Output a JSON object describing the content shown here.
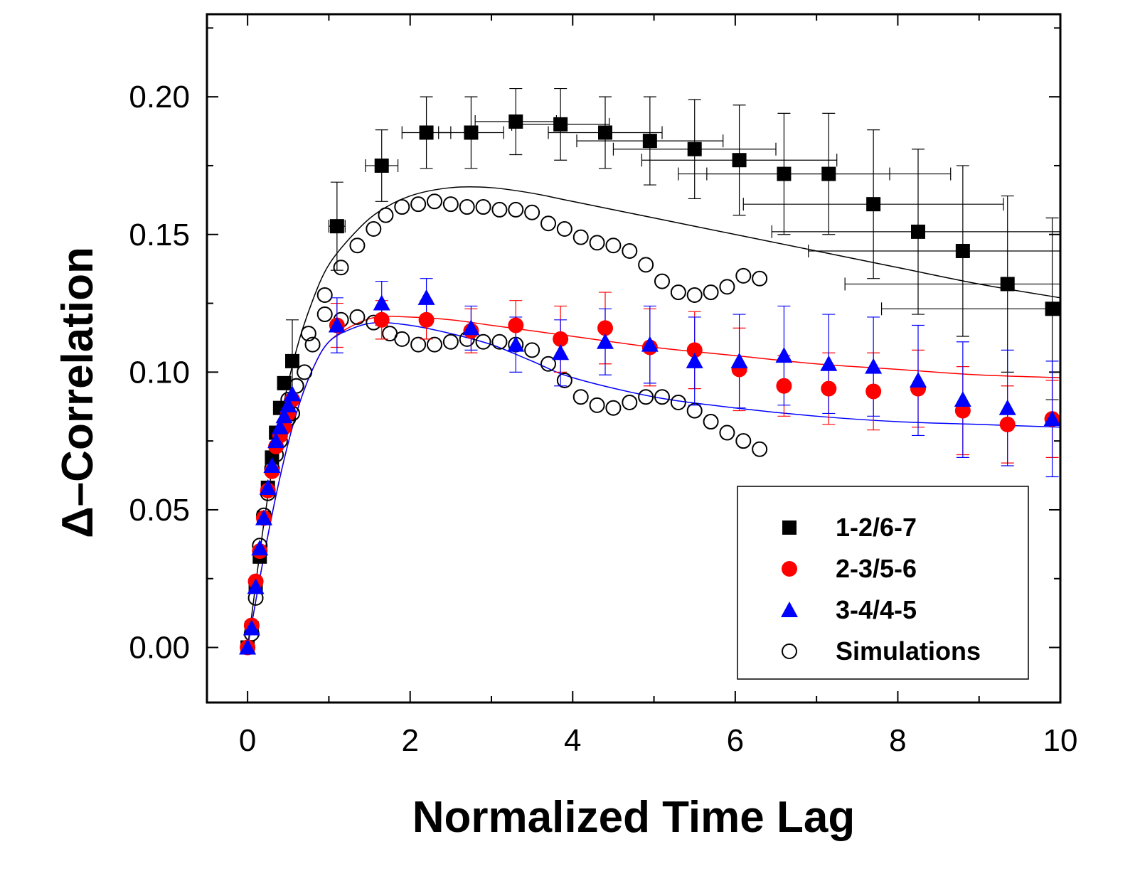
{
  "chart_data": {
    "type": "scatter",
    "title": "",
    "xlabel": "Normalized Time Lag",
    "ylabel": "Δ–Correlation",
    "xlim": [
      -0.5,
      10
    ],
    "ylim": [
      -0.02,
      0.23
    ],
    "xticks": [
      0,
      2,
      4,
      6,
      8,
      10
    ],
    "xtick_labels": [
      "0",
      "2",
      "4",
      "6",
      "8",
      "10"
    ],
    "yticks": [
      0.0,
      0.05,
      0.1,
      0.15,
      0.2
    ],
    "ytick_labels": [
      "0.00",
      "0.05",
      "0.10",
      "0.15",
      "0.20"
    ],
    "legend_position": "bottom-right",
    "series": [
      {
        "name": "1-2/6-7",
        "marker": "square",
        "color": "#000000",
        "x": [
          0.0,
          0.05,
          0.1,
          0.15,
          0.2,
          0.25,
          0.3,
          0.35,
          0.4,
          0.45,
          0.5,
          0.55,
          1.1,
          1.65,
          2.2,
          2.75,
          3.3,
          3.85,
          4.4,
          4.95,
          5.5,
          6.05,
          6.6,
          7.15,
          7.7,
          8.25,
          8.8,
          9.35,
          9.9
        ],
        "y": [
          0.0,
          0.007,
          0.022,
          0.033,
          0.047,
          0.058,
          0.069,
          0.078,
          0.087,
          0.096,
          0.085,
          0.104,
          0.153,
          0.175,
          0.187,
          0.187,
          0.191,
          0.19,
          0.187,
          0.184,
          0.181,
          0.177,
          0.172,
          0.172,
          0.161,
          0.151,
          0.144,
          0.132,
          0.123
        ],
        "yerr": [
          0,
          0,
          0,
          0,
          0,
          0,
          0,
          0,
          0,
          0,
          0,
          0.015,
          0.016,
          0.013,
          0.013,
          0.013,
          0.012,
          0.013,
          0.013,
          0.016,
          0.018,
          0.02,
          0.022,
          0.022,
          0.027,
          0.03,
          0.031,
          0.032,
          0.033
        ],
        "xerr": [
          0,
          0,
          0,
          0,
          0,
          0,
          0,
          0,
          0,
          0,
          0,
          0,
          0.1,
          0.2,
          0.3,
          0.4,
          0.5,
          0.6,
          0.7,
          0.9,
          1.0,
          1.2,
          1.3,
          1.5,
          1.6,
          1.8,
          1.9,
          2.0,
          2.1
        ],
        "fit": [
          [
            0.0,
            0.0
          ],
          [
            0.2,
            0.045
          ],
          [
            0.4,
            0.082
          ],
          [
            0.6,
            0.108
          ],
          [
            0.8,
            0.126
          ],
          [
            1.0,
            0.139
          ],
          [
            1.3,
            0.15
          ],
          [
            1.6,
            0.158
          ],
          [
            2.0,
            0.164
          ],
          [
            2.5,
            0.167
          ],
          [
            3.0,
            0.167
          ],
          [
            3.5,
            0.165
          ],
          [
            4.0,
            0.162
          ],
          [
            5.0,
            0.156
          ],
          [
            6.0,
            0.15
          ],
          [
            7.0,
            0.144
          ],
          [
            8.0,
            0.138
          ],
          [
            9.0,
            0.132
          ],
          [
            10.0,
            0.127
          ]
        ]
      },
      {
        "name": "2-3/5-6",
        "marker": "circle",
        "color": "#ff0000",
        "x": [
          0.0,
          0.05,
          0.1,
          0.15,
          0.2,
          0.25,
          0.3,
          0.35,
          0.4,
          0.45,
          0.5,
          0.55,
          1.1,
          1.65,
          2.2,
          2.75,
          3.3,
          3.85,
          4.4,
          4.95,
          5.5,
          6.05,
          6.6,
          7.15,
          7.7,
          8.25,
          8.8,
          9.35,
          9.9
        ],
        "y": [
          0.0,
          0.008,
          0.024,
          0.035,
          0.047,
          0.057,
          0.064,
          0.073,
          0.077,
          0.08,
          0.085,
          0.09,
          0.117,
          0.119,
          0.119,
          0.115,
          0.117,
          0.112,
          0.116,
          0.109,
          0.108,
          0.101,
          0.095,
          0.094,
          0.093,
          0.094,
          0.086,
          0.081,
          0.083
        ],
        "yerr": [
          0,
          0,
          0,
          0,
          0,
          0,
          0,
          0,
          0,
          0,
          0,
          0,
          0.008,
          0.007,
          0.007,
          0.008,
          0.009,
          0.012,
          0.013,
          0.014,
          0.014,
          0.015,
          0.011,
          0.013,
          0.014,
          0.014,
          0.016,
          0.014,
          0.014
        ],
        "fit": [
          [
            0.0,
            0.0
          ],
          [
            0.2,
            0.033
          ],
          [
            0.4,
            0.062
          ],
          [
            0.6,
            0.085
          ],
          [
            0.8,
            0.101
          ],
          [
            1.0,
            0.111
          ],
          [
            1.3,
            0.117
          ],
          [
            1.6,
            0.12
          ],
          [
            2.0,
            0.12
          ],
          [
            2.5,
            0.119
          ],
          [
            3.0,
            0.117
          ],
          [
            3.5,
            0.115
          ],
          [
            4.0,
            0.113
          ],
          [
            5.0,
            0.109
          ],
          [
            6.0,
            0.106
          ],
          [
            7.0,
            0.103
          ],
          [
            8.0,
            0.101
          ],
          [
            9.0,
            0.099
          ],
          [
            10.0,
            0.098
          ]
        ]
      },
      {
        "name": "3-4/4-5",
        "marker": "triangle",
        "color": "#0000ff",
        "x": [
          0.0,
          0.05,
          0.1,
          0.15,
          0.2,
          0.25,
          0.3,
          0.35,
          0.4,
          0.45,
          0.5,
          0.55,
          1.1,
          1.65,
          2.2,
          2.75,
          3.3,
          3.85,
          4.4,
          4.95,
          5.5,
          6.05,
          6.6,
          7.15,
          7.7,
          8.25,
          8.8,
          9.35,
          9.9
        ],
        "y": [
          0.0,
          0.007,
          0.022,
          0.036,
          0.047,
          0.058,
          0.066,
          0.075,
          0.08,
          0.084,
          0.088,
          0.092,
          0.117,
          0.125,
          0.127,
          0.116,
          0.11,
          0.107,
          0.111,
          0.11,
          0.104,
          0.104,
          0.106,
          0.103,
          0.102,
          0.097,
          0.09,
          0.087,
          0.083
        ],
        "yerr": [
          0,
          0,
          0,
          0,
          0,
          0,
          0,
          0,
          0,
          0,
          0,
          0,
          0.01,
          0.008,
          0.007,
          0.008,
          0.01,
          0.012,
          0.012,
          0.014,
          0.016,
          0.017,
          0.018,
          0.018,
          0.018,
          0.02,
          0.021,
          0.021,
          0.021
        ],
        "fit": [
          [
            0.0,
            0.0
          ],
          [
            0.2,
            0.033
          ],
          [
            0.4,
            0.062
          ],
          [
            0.6,
            0.085
          ],
          [
            0.8,
            0.101
          ],
          [
            1.0,
            0.111
          ],
          [
            1.3,
            0.116
          ],
          [
            1.6,
            0.118
          ],
          [
            2.0,
            0.117
          ],
          [
            2.5,
            0.114
          ],
          [
            3.0,
            0.11
          ],
          [
            3.5,
            0.104
          ],
          [
            4.0,
            0.098
          ],
          [
            5.0,
            0.091
          ],
          [
            6.0,
            0.087
          ],
          [
            7.0,
            0.084
          ],
          [
            8.0,
            0.082
          ],
          [
            9.0,
            0.081
          ],
          [
            10.0,
            0.08
          ]
        ]
      },
      {
        "name": "Simulations",
        "marker": "open-circle",
        "color": "#000000",
        "groups": [
          {
            "x": [
              0.05,
              0.1,
              0.15,
              0.2,
              0.25,
              0.3,
              0.35,
              0.4,
              0.45,
              0.5,
              0.55,
              0.6,
              0.7,
              0.8,
              0.95,
              1.15,
              1.35,
              1.55,
              1.75,
              1.9,
              2.1,
              2.3,
              2.5,
              2.7,
              2.9,
              3.1,
              3.3,
              3.5,
              3.7,
              3.9,
              4.1,
              4.3,
              4.5,
              4.7,
              4.9,
              5.1,
              5.3,
              5.5,
              5.7,
              5.9,
              6.1,
              6.3
            ],
            "y": [
              0.005,
              0.018,
              0.037,
              0.048,
              0.056,
              0.065,
              0.07,
              0.075,
              0.08,
              0.083,
              0.085,
              0.095,
              0.1,
              0.11,
              0.121,
              0.119,
              0.12,
              0.118,
              0.114,
              0.112,
              0.11,
              0.11,
              0.111,
              0.112,
              0.111,
              0.111,
              0.11,
              0.108,
              0.103,
              0.097,
              0.091,
              0.088,
              0.087,
              0.089,
              0.091,
              0.091,
              0.089,
              0.086,
              0.082,
              0.078,
              0.075,
              0.072
            ]
          },
          {
            "x": [
              0.5,
              0.6,
              0.75,
              0.95,
              1.15,
              1.35,
              1.55,
              1.7,
              1.9,
              2.1,
              2.3,
              2.5,
              2.7,
              2.9,
              3.1,
              3.3,
              3.5,
              3.7,
              3.9,
              4.1,
              4.3,
              4.5,
              4.7,
              4.9,
              5.1,
              5.3,
              5.5,
              5.7,
              5.9,
              6.1,
              6.3
            ],
            "y": [
              0.09,
              0.095,
              0.114,
              0.128,
              0.138,
              0.146,
              0.152,
              0.157,
              0.16,
              0.161,
              0.162,
              0.161,
              0.16,
              0.16,
              0.159,
              0.159,
              0.158,
              0.154,
              0.152,
              0.149,
              0.147,
              0.146,
              0.144,
              0.139,
              0.133,
              0.129,
              0.128,
              0.129,
              0.131,
              0.135,
              0.134
            ]
          }
        ]
      }
    ]
  }
}
